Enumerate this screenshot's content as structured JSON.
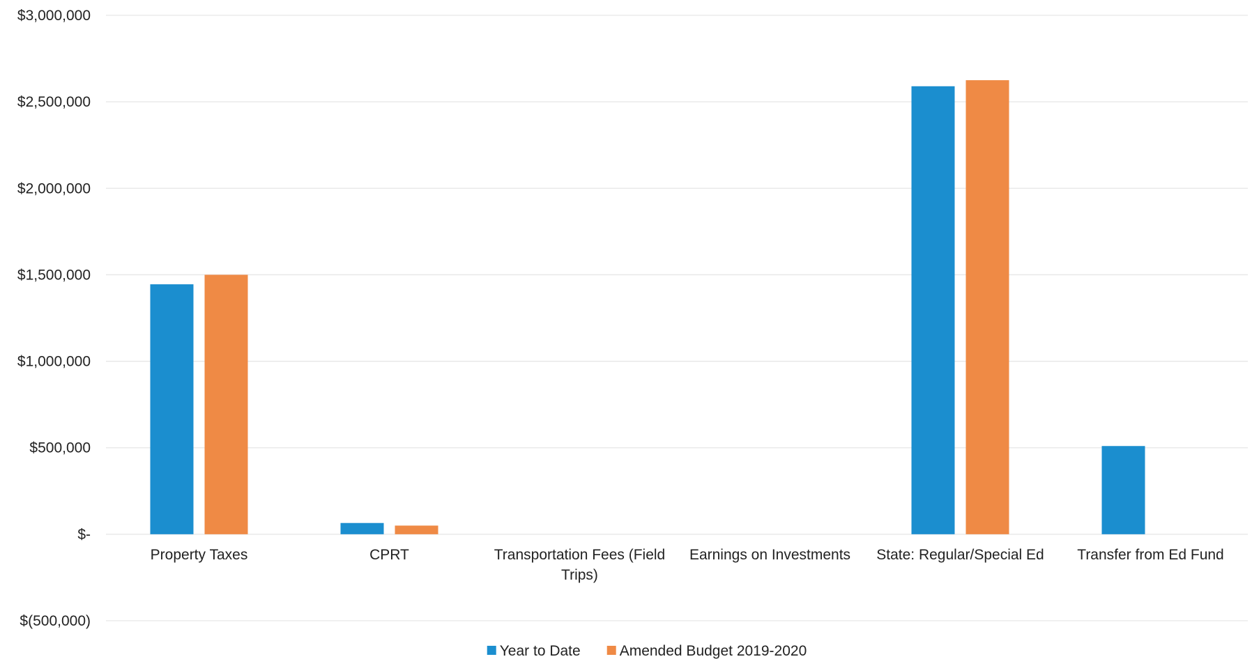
{
  "chart_data": {
    "type": "bar",
    "title": "",
    "xlabel": "",
    "ylabel": "",
    "categories": [
      [
        "Property Taxes"
      ],
      [
        "CPRT"
      ],
      [
        "Transportation Fees (Field",
        "Trips)"
      ],
      [
        "Earnings on Investments"
      ],
      [
        "State: Regular/Special Ed"
      ],
      [
        "Transfer from Ed Fund"
      ]
    ],
    "series": [
      {
        "name": "Year to Date",
        "color": "#1b8ecf",
        "values": [
          1445000,
          65000,
          0,
          0,
          2590000,
          510000
        ]
      },
      {
        "name": "Amended Budget 2019-2020",
        "color": "#ef8a45",
        "values": [
          1500000,
          50000,
          0,
          0,
          2625000,
          0
        ]
      }
    ],
    "ylim": [
      -500000,
      3000000
    ],
    "yticks": [
      3000000,
      2500000,
      2000000,
      1500000,
      1000000,
      500000,
      0,
      -500000
    ],
    "ytick_labels": [
      "$3,000,000",
      "$2,500,000",
      "$2,000,000",
      "$1,500,000",
      "$1,000,000",
      "$500,000",
      "$-",
      "$(500,000)"
    ],
    "grid": true,
    "legend_position": "bottom"
  }
}
